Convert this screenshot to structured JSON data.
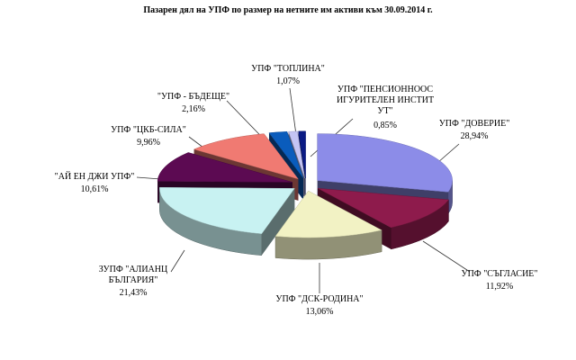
{
  "chart_data": {
    "type": "pie3d",
    "title": "Пазарен дял на УПФ по размер на нетните им активи към 30.09.2014 г.",
    "categories": [
      "УПФ \"ДОВЕРИЕ\"",
      "УПФ \"СЪГЛАСИЕ\"",
      "УПФ \"ДСК-РОДИНА\"",
      "ЗУПФ \"АЛИАНЦ БЪЛГАРИЯ\"",
      "\"АЙ ЕН ДЖИ УПФ\"",
      "УПФ \"ЦКБ-СИЛА\"",
      "\"УПФ - БЪДЕЩЕ\"",
      "УПФ \"ТОПЛИНА\"",
      "УПФ \"ПЕНСИОННООСИГУРИТЕЛЕН ИНСТИТУТ\""
    ],
    "values": [
      28.94,
      11.92,
      13.06,
      21.43,
      10.61,
      9.96,
      2.16,
      1.07,
      0.85
    ],
    "value_labels": [
      "28,94%",
      "11,92%",
      "13,06%",
      "21,43%",
      "10,61%",
      "9,96%",
      "2,16%",
      "1,07%",
      "0,85%"
    ],
    "colors": [
      "#8c8ce8",
      "#8e1b4c",
      "#f2f2c4",
      "#c8f2f2",
      "#5c0a52",
      "#f07a72",
      "#0a5cbc",
      "#c4c4f4",
      "#0a1a84"
    ]
  }
}
